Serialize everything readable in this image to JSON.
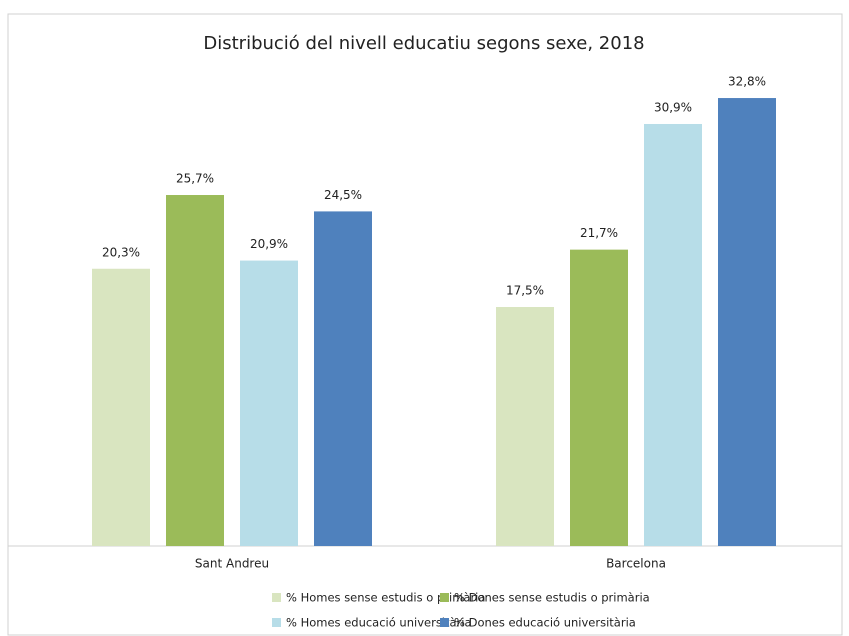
{
  "chart_data": {
    "type": "bar",
    "title": "Distribució del nivell educatiu segons sexe, 2018",
    "categories": [
      "Sant Andreu",
      "Barcelona"
    ],
    "series": [
      {
        "name": "% Homes sense estudis o primària",
        "color": "#d9e5c0",
        "values": [
          20.3,
          17.5
        ],
        "value_labels": [
          "20,3%",
          "17,5%"
        ]
      },
      {
        "name": "% Dones sense estudis o primària",
        "color": "#9bbb59",
        "values": [
          25.7,
          21.7
        ],
        "value_labels": [
          "25,7%",
          "21,7%"
        ]
      },
      {
        "name": "% Homes educació universitària",
        "color": "#b7dde8",
        "values": [
          20.9,
          30.9
        ],
        "value_labels": [
          "20,9%",
          "30,9%"
        ]
      },
      {
        "name": "% Dones educació universitària",
        "color": "#4f81bd",
        "values": [
          24.5,
          32.8
        ],
        "value_labels": [
          "24,5%",
          "32,8%"
        ]
      }
    ],
    "ylim": [
      0,
      35
    ]
  }
}
